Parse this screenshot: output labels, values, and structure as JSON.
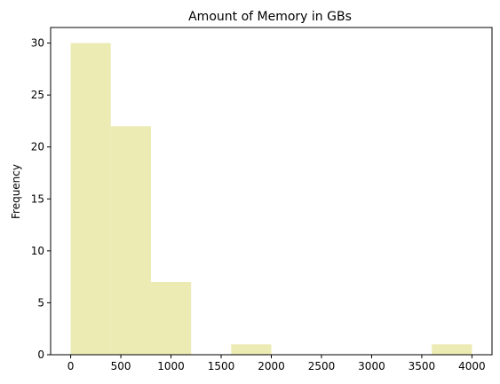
{
  "chart_data": {
    "type": "bar",
    "title": "Amount of Memory in GBs",
    "xlabel": "",
    "ylabel": "Frequency",
    "bins": [
      {
        "start": 0,
        "end": 400,
        "count": 30
      },
      {
        "start": 400,
        "end": 800,
        "count": 22
      },
      {
        "start": 800,
        "end": 1200,
        "count": 7
      },
      {
        "start": 1200,
        "end": 1600,
        "count": 0
      },
      {
        "start": 1600,
        "end": 2000,
        "count": 1
      },
      {
        "start": 2000,
        "end": 2400,
        "count": 0
      },
      {
        "start": 2400,
        "end": 2800,
        "count": 0
      },
      {
        "start": 2800,
        "end": 3200,
        "count": 0
      },
      {
        "start": 3200,
        "end": 3600,
        "count": 0
      },
      {
        "start": 3600,
        "end": 4000,
        "count": 1
      }
    ],
    "xlim": [
      -200,
      4200
    ],
    "ylim": [
      0,
      31.5
    ],
    "xticks": [
      "0",
      "500",
      "1000",
      "1500",
      "2000",
      "2500",
      "3000",
      "3500",
      "4000"
    ],
    "xtick_values": [
      0,
      500,
      1000,
      1500,
      2000,
      2500,
      3000,
      3500,
      4000
    ],
    "yticks": [
      "0",
      "5",
      "10",
      "15",
      "20",
      "25",
      "30"
    ],
    "ytick_values": [
      0,
      5,
      10,
      15,
      20,
      25,
      30
    ],
    "bar_color": "#ecebb4",
    "grid": false
  }
}
